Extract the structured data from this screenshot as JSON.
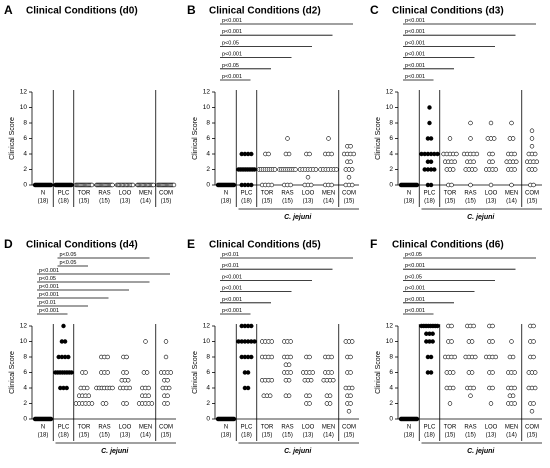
{
  "chart_data": [
    {
      "type": "strip",
      "panel": "A",
      "title": "Clinical Conditions (d0)",
      "ylabel": "Clinical Score",
      "categories": [
        "N",
        "PLC",
        "TOR",
        "RAS",
        "LOO",
        "MEN",
        "COM"
      ],
      "counts": [
        "(18)",
        "(18)",
        "(15)",
        "(15)",
        "(13)",
        "(14)",
        "(15)"
      ],
      "marker_fill": [
        "#000",
        "#000",
        "#fff",
        "#fff",
        "#fff",
        "#fff",
        "#fff"
      ],
      "ylim": [
        0,
        12
      ],
      "yticks": [
        0,
        2,
        4,
        6,
        8,
        10,
        12
      ],
      "values": [
        [
          0,
          0,
          0,
          0,
          0,
          0,
          0,
          0,
          0,
          0,
          0,
          0,
          0,
          0,
          0,
          0,
          0,
          0
        ],
        [
          0,
          0,
          0,
          0,
          0,
          0,
          0,
          0,
          0,
          0,
          0,
          0,
          0,
          0,
          0,
          0,
          0,
          0
        ],
        [
          0,
          0,
          0,
          0,
          0,
          0,
          0,
          0,
          0,
          0,
          0,
          0,
          0,
          0,
          0
        ],
        [
          0,
          0,
          0,
          0,
          0,
          0,
          0,
          0,
          0,
          0,
          0,
          0,
          0,
          0,
          0
        ],
        [
          0,
          0,
          0,
          0,
          0,
          0,
          0,
          0,
          0,
          0,
          0,
          0,
          0
        ],
        [
          0,
          0,
          0,
          0,
          0,
          0,
          0,
          0,
          0,
          0,
          0,
          0,
          0,
          0
        ],
        [
          0,
          0,
          0,
          0,
          0,
          0,
          0,
          0,
          0,
          0,
          0,
          0,
          0,
          0,
          0
        ]
      ],
      "comparisons": []
    },
    {
      "type": "strip",
      "panel": "B",
      "title": "Clinical Conditions (d2)",
      "ylabel": "Clinical Score",
      "group_label": "C. jejuni",
      "categories": [
        "N",
        "PLC",
        "TOR",
        "RAS",
        "LOO",
        "MEN",
        "COM"
      ],
      "counts": [
        "(18)",
        "(18)",
        "(15)",
        "(15)",
        "(13)",
        "(14)",
        "(15)"
      ],
      "marker_fill": [
        "#000",
        "#000",
        "#fff",
        "#fff",
        "#fff",
        "#fff",
        "#fff"
      ],
      "ylim": [
        0,
        12
      ],
      "yticks": [
        0,
        2,
        4,
        6,
        8,
        10,
        12
      ],
      "values": [
        [
          0,
          0,
          0,
          0,
          0,
          0,
          0,
          0,
          0,
          0,
          0,
          0,
          0,
          0,
          0,
          0,
          0,
          0
        ],
        [
          0,
          0,
          0,
          0,
          2,
          2,
          2,
          2,
          2,
          2,
          2,
          2,
          2,
          2,
          4,
          4,
          4,
          4
        ],
        [
          0,
          0,
          0,
          0,
          2,
          2,
          2,
          2,
          2,
          2,
          2,
          2,
          2,
          4,
          4
        ],
        [
          0,
          0,
          0,
          2,
          2,
          2,
          2,
          2,
          2,
          2,
          2,
          2,
          4,
          4,
          6
        ],
        [
          0,
          0,
          0,
          1,
          2,
          2,
          2,
          2,
          2,
          2,
          2,
          4,
          4
        ],
        [
          0,
          0,
          0,
          2,
          2,
          2,
          2,
          2,
          2,
          2,
          4,
          4,
          4,
          6
        ],
        [
          0,
          0,
          0,
          1,
          2,
          2,
          2,
          3,
          3,
          4,
          4,
          4,
          4,
          5,
          5
        ]
      ],
      "comparisons": [
        {
          "from": "N",
          "to": "PLC",
          "label": "p<0.001"
        },
        {
          "from": "N",
          "to": "TOR",
          "label": "p<0.05"
        },
        {
          "from": "N",
          "to": "RAS",
          "label": "p<0.001"
        },
        {
          "from": "N",
          "to": "LOO",
          "label": "p<0.05"
        },
        {
          "from": "N",
          "to": "MEN",
          "label": "p<0.001"
        },
        {
          "from": "N",
          "to": "COM",
          "label": "p<0.001"
        }
      ]
    },
    {
      "type": "strip",
      "panel": "C",
      "title": "Clinical Conditions (d3)",
      "ylabel": "Clinical Score",
      "group_label": "C. jejuni",
      "categories": [
        "N",
        "PLC",
        "TOR",
        "RAS",
        "LOO",
        "MEN",
        "COM"
      ],
      "counts": [
        "(18)",
        "(18)",
        "(15)",
        "(15)",
        "(13)",
        "(14)",
        "(15)"
      ],
      "marker_fill": [
        "#000",
        "#000",
        "#fff",
        "#fff",
        "#fff",
        "#fff",
        "#fff"
      ],
      "ylim": [
        0,
        12
      ],
      "yticks": [
        0,
        2,
        4,
        6,
        8,
        10,
        12
      ],
      "values": [
        [
          0,
          0,
          0,
          0,
          0,
          0,
          0,
          0,
          0,
          0,
          0,
          0,
          0,
          0,
          0,
          0,
          0,
          0
        ],
        [
          0,
          0,
          2,
          2,
          2,
          2,
          3,
          3,
          4,
          4,
          4,
          4,
          4,
          4,
          6,
          6,
          8,
          10
        ],
        [
          0,
          0,
          2,
          2,
          2,
          3,
          3,
          3,
          3,
          4,
          4,
          4,
          4,
          4,
          6
        ],
        [
          0,
          2,
          2,
          2,
          2,
          3,
          3,
          3,
          4,
          4,
          4,
          4,
          4,
          6,
          8
        ],
        [
          0,
          2,
          2,
          2,
          2,
          3,
          3,
          4,
          4,
          6,
          6,
          6,
          8
        ],
        [
          0,
          2,
          2,
          2,
          3,
          3,
          3,
          3,
          4,
          4,
          4,
          6,
          6,
          8
        ],
        [
          0,
          0,
          2,
          2,
          2,
          3,
          3,
          3,
          3,
          4,
          4,
          4,
          5,
          6,
          7
        ]
      ],
      "comparisons": [
        {
          "from": "N",
          "to": "PLC",
          "label": "p<0.001"
        },
        {
          "from": "N",
          "to": "TOR",
          "label": "p<0.001"
        },
        {
          "from": "N",
          "to": "RAS",
          "label": "p<0.001"
        },
        {
          "from": "N",
          "to": "LOO",
          "label": "p<0.001"
        },
        {
          "from": "N",
          "to": "MEN",
          "label": "p<0.001"
        },
        {
          "from": "N",
          "to": "COM",
          "label": "p<0.001"
        }
      ]
    },
    {
      "type": "strip",
      "panel": "D",
      "title": "Clinical Conditions (d4)",
      "ylabel": "Clinical Score",
      "group_label": "C. jejuni",
      "categories": [
        "N",
        "PLC",
        "TOR",
        "RAS",
        "LOO",
        "MEN",
        "COM"
      ],
      "counts": [
        "(18)",
        "(18)",
        "(15)",
        "(15)",
        "(13)",
        "(14)",
        "(15)"
      ],
      "marker_fill": [
        "#000",
        "#000",
        "#fff",
        "#fff",
        "#fff",
        "#fff",
        "#fff"
      ],
      "ylim": [
        0,
        12
      ],
      "yticks": [
        0,
        2,
        4,
        6,
        8,
        10,
        12
      ],
      "values": [
        [
          0,
          0,
          0,
          0,
          0,
          0,
          0,
          0,
          0,
          0,
          0,
          0,
          0,
          0,
          0,
          0,
          0,
          0
        ],
        [
          4,
          4,
          4,
          6,
          6,
          6,
          6,
          6,
          6,
          6,
          6,
          8,
          8,
          8,
          8,
          10,
          10,
          12
        ],
        [
          2,
          2,
          2,
          2,
          2,
          2,
          3,
          3,
          3,
          3,
          4,
          4,
          4,
          6,
          6
        ],
        [
          2,
          2,
          4,
          4,
          4,
          4,
          4,
          4,
          4,
          6,
          6,
          6,
          8,
          8,
          8
        ],
        [
          2,
          2,
          4,
          4,
          4,
          4,
          5,
          5,
          5,
          6,
          6,
          8,
          8
        ],
        [
          2,
          2,
          2,
          2,
          2,
          3,
          3,
          3,
          4,
          4,
          4,
          6,
          6,
          10
        ],
        [
          2,
          2,
          3,
          3,
          4,
          4,
          4,
          5,
          5,
          6,
          6,
          6,
          6,
          8,
          10
        ]
      ],
      "comparisons": [
        {
          "from": "N",
          "to": "PLC",
          "label": "p<0.001"
        },
        {
          "from": "N",
          "to": "TOR",
          "label": "p<0.01"
        },
        {
          "from": "N",
          "to": "RAS",
          "label": "p<0.001"
        },
        {
          "from": "N",
          "to": "LOO",
          "label": "p<0.001"
        },
        {
          "from": "N",
          "to": "MEN",
          "label": "p<0.05"
        },
        {
          "from": "N",
          "to": "COM",
          "label": "p<0.001"
        },
        {
          "from": "PLC",
          "to": "TOR",
          "label": "p<0.05"
        },
        {
          "from": "PLC",
          "to": "MEN",
          "label": "p<0.05"
        }
      ]
    },
    {
      "type": "strip",
      "panel": "E",
      "title": "Clinical Conditions (d5)",
      "ylabel": "Clinical Score",
      "group_label": "C. jejuni",
      "categories": [
        "N",
        "PLC",
        "TOR",
        "RAS",
        "LOO",
        "MEN",
        "COM"
      ],
      "counts": [
        "(18)",
        "(18)",
        "(15)",
        "(15)",
        "(13)",
        "(14)",
        "(15)"
      ],
      "marker_fill": [
        "#000",
        "#000",
        "#fff",
        "#fff",
        "#fff",
        "#fff",
        "#fff"
      ],
      "ylim": [
        0,
        12
      ],
      "yticks": [
        0,
        2,
        4,
        6,
        8,
        10,
        12
      ],
      "values": [
        [
          0,
          0,
          0,
          0,
          0,
          0,
          0,
          0,
          0,
          0,
          0,
          0,
          0,
          0,
          0,
          0,
          0,
          0
        ],
        [
          4,
          4,
          6,
          6,
          8,
          8,
          8,
          8,
          10,
          10,
          10,
          10,
          10,
          10,
          12,
          12,
          12,
          12
        ],
        [
          3,
          3,
          3,
          5,
          5,
          5,
          5,
          8,
          8,
          8,
          8,
          10,
          10,
          10,
          10
        ],
        [
          3,
          3,
          5,
          5,
          6,
          6,
          6,
          7,
          7,
          8,
          8,
          8,
          10,
          10,
          10
        ],
        [
          2,
          2,
          3,
          3,
          5,
          5,
          5,
          6,
          6,
          6,
          6,
          8,
          8
        ],
        [
          2,
          2,
          3,
          3,
          5,
          5,
          5,
          5,
          6,
          6,
          6,
          8,
          8,
          8
        ],
        [
          1,
          2,
          2,
          3,
          3,
          4,
          4,
          4,
          6,
          6,
          8,
          8,
          10,
          10,
          10
        ]
      ],
      "comparisons": [
        {
          "from": "N",
          "to": "PLC",
          "label": "p<0.001"
        },
        {
          "from": "N",
          "to": "TOR",
          "label": "p<0.001"
        },
        {
          "from": "N",
          "to": "RAS",
          "label": "p<0.001"
        },
        {
          "from": "N",
          "to": "LOO",
          "label": "p<0.001"
        },
        {
          "from": "N",
          "to": "MEN",
          "label": "p<0.01"
        },
        {
          "from": "N",
          "to": "COM",
          "label": "p<0.01"
        }
      ]
    },
    {
      "type": "strip",
      "panel": "F",
      "title": "Clinical Conditions (d6)",
      "ylabel": "Clinical Score",
      "group_label": "C. jejuni",
      "categories": [
        "N",
        "PLC",
        "TOR",
        "RAS",
        "LOO",
        "MEN",
        "COM"
      ],
      "counts": [
        "(18)",
        "(18)",
        "(15)",
        "(15)",
        "(13)",
        "(14)",
        "(15)"
      ],
      "marker_fill": [
        "#000",
        "#000",
        "#fff",
        "#fff",
        "#fff",
        "#fff",
        "#fff"
      ],
      "ylim": [
        0,
        12
      ],
      "yticks": [
        0,
        2,
        4,
        6,
        8,
        10,
        12
      ],
      "values": [
        [
          0,
          0,
          0,
          0,
          0,
          0,
          0,
          0,
          0,
          0,
          0,
          0,
          0,
          0,
          0,
          0,
          0,
          0
        ],
        [
          6,
          6,
          8,
          8,
          10,
          10,
          10,
          11,
          11,
          11,
          12,
          12,
          12,
          12,
          12,
          12,
          12,
          12
        ],
        [
          2,
          4,
          4,
          4,
          6,
          6,
          6,
          8,
          8,
          8,
          8,
          10,
          10,
          12,
          12
        ],
        [
          3,
          4,
          4,
          4,
          6,
          6,
          8,
          8,
          8,
          8,
          10,
          10,
          12,
          12,
          12
        ],
        [
          2,
          4,
          4,
          6,
          6,
          8,
          8,
          8,
          8,
          10,
          10,
          12,
          12
        ],
        [
          2,
          2,
          2,
          3,
          3,
          4,
          4,
          4,
          6,
          6,
          6,
          8,
          8,
          10
        ],
        [
          1,
          2,
          2,
          4,
          4,
          4,
          6,
          6,
          6,
          8,
          8,
          10,
          10,
          12,
          12
        ]
      ],
      "comparisons": [
        {
          "from": "N",
          "to": "PLC",
          "label": "p<0.001"
        },
        {
          "from": "N",
          "to": "TOR",
          "label": "p<0.001"
        },
        {
          "from": "N",
          "to": "RAS",
          "label": "p<0.001"
        },
        {
          "from": "N",
          "to": "LOO",
          "label": "p<0.05"
        },
        {
          "from": "N",
          "to": "MEN",
          "label": "p<0.001"
        },
        {
          "from": "N",
          "to": "COM",
          "label": "p<0.05"
        }
      ]
    }
  ]
}
